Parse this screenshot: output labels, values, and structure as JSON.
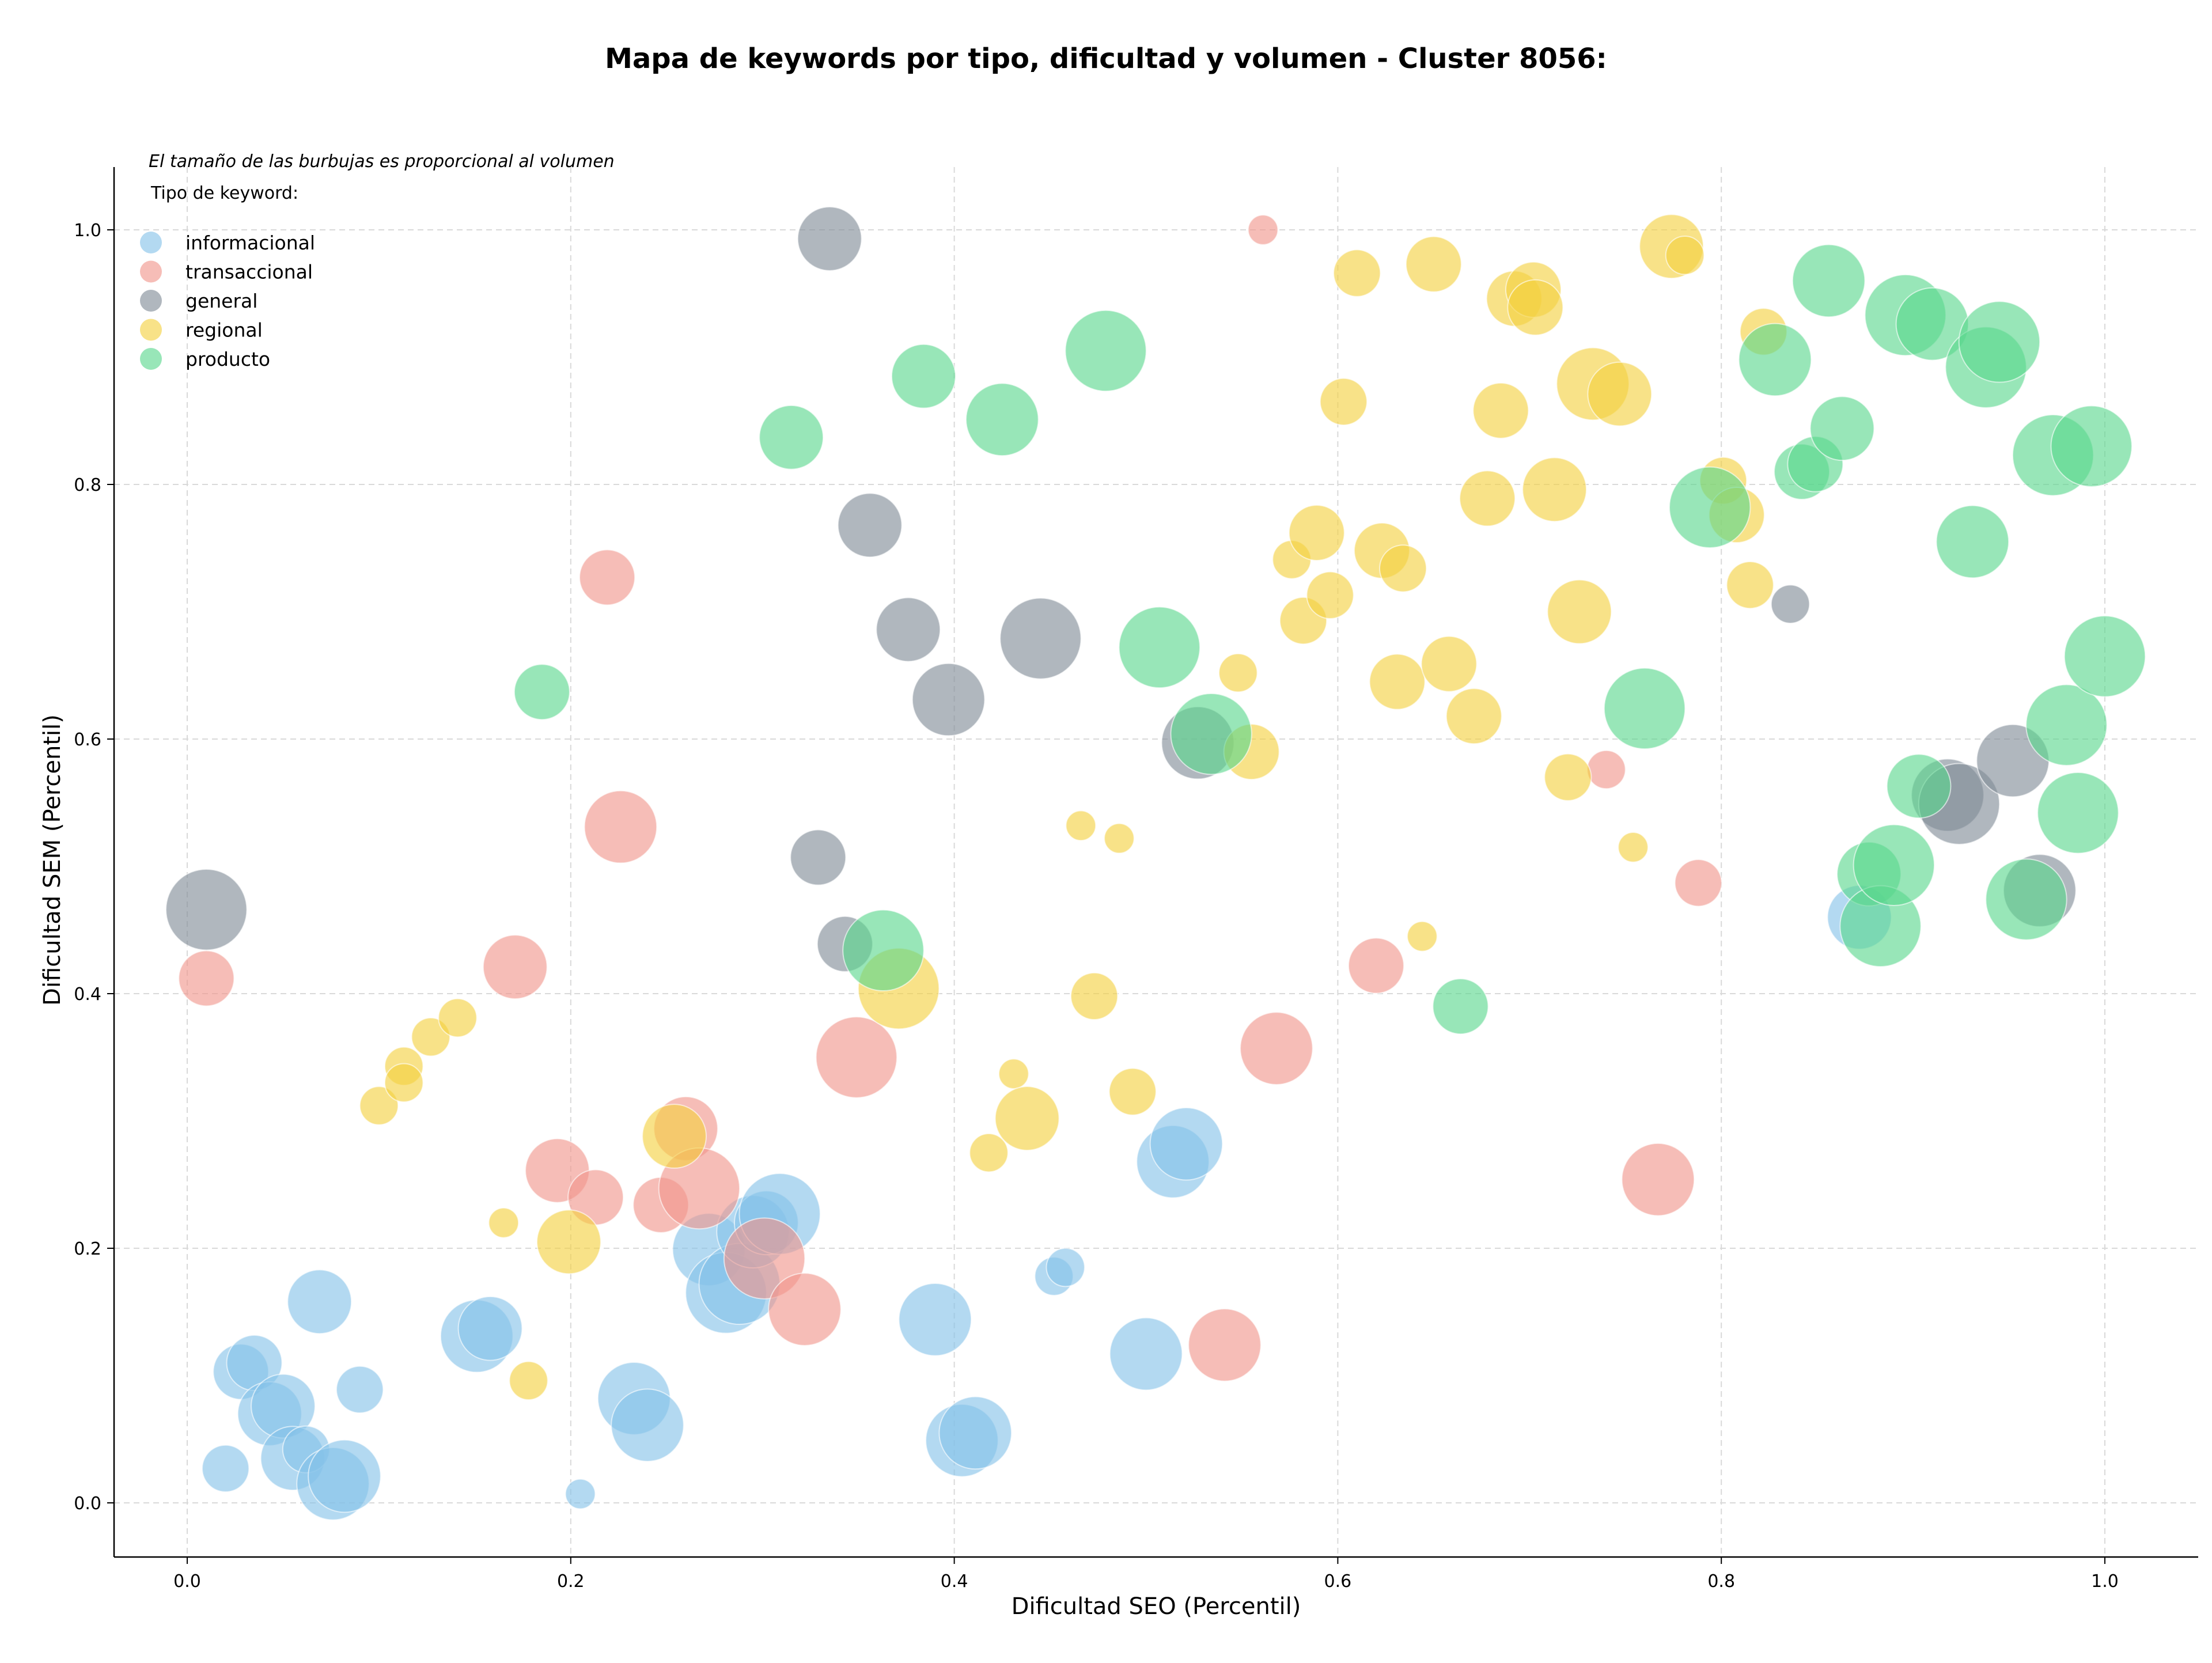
{
  "chart_data": {
    "type": "scatter",
    "title": "Mapa de keywords por tipo, dificultad y volumen - Cluster 8056:",
    "xlabel": "Dificultad SEO (Percentil)",
    "ylabel": "Dificultad SEM (Percentil)",
    "xlim": [
      -0.04,
      1.05
    ],
    "ylim": [
      -0.04,
      1.05
    ],
    "x_ticks": [
      0.0,
      0.2,
      0.4,
      0.6,
      0.8,
      1.0
    ],
    "x_tick_labels": [
      "0.0",
      "0.2",
      "0.4",
      "0.6",
      "0.8",
      "1.0"
    ],
    "y_ticks": [
      0.0,
      0.2,
      0.4,
      0.6,
      0.8,
      1.0
    ],
    "y_tick_labels": [
      "0.0",
      "0.2",
      "0.4",
      "0.6",
      "0.8",
      "1.0"
    ],
    "grid": true,
    "legend_position": "top-left",
    "annotation": "El tamaño de las burbujas es proporcional al volumen",
    "legend_title": "Tipo de keyword:",
    "size_range_note": "bubble size is relative volume on a 1-10 scale",
    "series": [
      {
        "name": "informacional",
        "color": "#85C1E9",
        "points": [
          [
            0.02,
            0.027,
            4
          ],
          [
            0.028,
            0.103,
            5
          ],
          [
            0.035,
            0.11,
            5
          ],
          [
            0.043,
            0.07,
            6
          ],
          [
            0.05,
            0.076,
            6
          ],
          [
            0.055,
            0.035,
            6
          ],
          [
            0.062,
            0.042,
            4
          ],
          [
            0.069,
            0.158,
            6
          ],
          [
            0.076,
            0.015,
            7
          ],
          [
            0.082,
            0.021,
            7
          ],
          [
            0.09,
            0.089,
            4
          ],
          [
            0.151,
            0.131,
            7
          ],
          [
            0.158,
            0.137,
            6
          ],
          [
            0.205,
            0.007,
            2
          ],
          [
            0.233,
            0.082,
            7
          ],
          [
            0.24,
            0.061,
            7
          ],
          [
            0.272,
            0.199,
            7
          ],
          [
            0.281,
            0.165,
            8
          ],
          [
            0.288,
            0.172,
            8
          ],
          [
            0.295,
            0.213,
            7
          ],
          [
            0.302,
            0.22,
            6
          ],
          [
            0.309,
            0.227,
            8
          ],
          [
            0.39,
            0.144,
            7
          ],
          [
            0.404,
            0.049,
            7
          ],
          [
            0.411,
            0.055,
            7
          ],
          [
            0.452,
            0.178,
            3
          ],
          [
            0.458,
            0.185,
            3
          ],
          [
            0.5,
            0.117,
            7
          ],
          [
            0.514,
            0.268,
            7
          ],
          [
            0.521,
            0.282,
            7
          ],
          [
            0.872,
            0.46,
            6
          ]
        ]
      },
      {
        "name": "transaccional",
        "color": "#F1948A",
        "points": [
          [
            0.01,
            0.412,
            5
          ],
          [
            0.171,
            0.421,
            6
          ],
          [
            0.193,
            0.261,
            6
          ],
          [
            0.213,
            0.24,
            5
          ],
          [
            0.219,
            0.727,
            5
          ],
          [
            0.226,
            0.531,
            7
          ],
          [
            0.247,
            0.234,
            5
          ],
          [
            0.26,
            0.294,
            6
          ],
          [
            0.267,
            0.247,
            8
          ],
          [
            0.301,
            0.192,
            8
          ],
          [
            0.322,
            0.152,
            7
          ],
          [
            0.349,
            0.35,
            8
          ],
          [
            0.541,
            0.124,
            7
          ],
          [
            0.561,
            1.0,
            2
          ],
          [
            0.568,
            0.357,
            7
          ],
          [
            0.62,
            0.422,
            5
          ],
          [
            0.74,
            0.576,
            3
          ],
          [
            0.767,
            0.254,
            7
          ],
          [
            0.788,
            0.487,
            4
          ]
        ]
      },
      {
        "name": "general",
        "color": "#808B96",
        "points": [
          [
            0.01,
            0.466,
            8
          ],
          [
            0.329,
            0.507,
            5
          ],
          [
            0.335,
            0.993,
            6
          ],
          [
            0.343,
            0.439,
            5
          ],
          [
            0.356,
            0.768,
            6
          ],
          [
            0.376,
            0.686,
            6
          ],
          [
            0.397,
            0.631,
            7
          ],
          [
            0.445,
            0.679,
            8
          ],
          [
            0.527,
            0.597,
            7
          ],
          [
            0.836,
            0.706,
            3
          ],
          [
            0.918,
            0.556,
            7
          ],
          [
            0.924,
            0.549,
            8
          ],
          [
            0.952,
            0.583,
            7
          ],
          [
            0.966,
            0.481,
            7
          ]
        ]
      },
      {
        "name": "regional",
        "color": "#F4D03F",
        "points": [
          [
            0.1,
            0.312,
            3
          ],
          [
            0.113,
            0.343,
            3
          ],
          [
            0.113,
            0.33,
            3
          ],
          [
            0.127,
            0.366,
            3
          ],
          [
            0.141,
            0.381,
            3
          ],
          [
            0.165,
            0.22,
            2
          ],
          [
            0.178,
            0.096,
            3
          ],
          [
            0.199,
            0.205,
            6
          ],
          [
            0.254,
            0.288,
            6
          ],
          [
            0.371,
            0.404,
            8
          ],
          [
            0.418,
            0.275,
            3
          ],
          [
            0.431,
            0.337,
            2
          ],
          [
            0.438,
            0.302,
            6
          ],
          [
            0.466,
            0.532,
            2
          ],
          [
            0.473,
            0.398,
            4
          ],
          [
            0.486,
            0.522,
            2
          ],
          [
            0.493,
            0.323,
            4
          ],
          [
            0.548,
            0.652,
            3
          ],
          [
            0.555,
            0.59,
            5
          ],
          [
            0.576,
            0.741,
            3
          ],
          [
            0.582,
            0.693,
            4
          ],
          [
            0.589,
            0.762,
            5
          ],
          [
            0.596,
            0.713,
            4
          ],
          [
            0.603,
            0.865,
            4
          ],
          [
            0.61,
            0.966,
            4
          ],
          [
            0.623,
            0.748,
            5
          ],
          [
            0.631,
            0.645,
            5
          ],
          [
            0.634,
            0.734,
            4
          ],
          [
            0.644,
            0.445,
            2
          ],
          [
            0.65,
            0.973,
            5
          ],
          [
            0.658,
            0.659,
            5
          ],
          [
            0.671,
            0.618,
            5
          ],
          [
            0.678,
            0.789,
            5
          ],
          [
            0.685,
            0.858,
            5
          ],
          [
            0.692,
            0.946,
            5
          ],
          [
            0.702,
            0.953,
            5
          ],
          [
            0.703,
            0.939,
            5
          ],
          [
            0.713,
            0.796,
            6
          ],
          [
            0.72,
            0.57,
            4
          ],
          [
            0.726,
            0.7,
            6
          ],
          [
            0.733,
            0.879,
            7
          ],
          [
            0.747,
            0.871,
            6
          ],
          [
            0.754,
            0.515,
            2
          ],
          [
            0.774,
            0.987,
            6
          ],
          [
            0.781,
            0.98,
            3
          ],
          [
            0.801,
            0.803,
            4
          ],
          [
            0.808,
            0.776,
            5
          ],
          [
            0.815,
            0.721,
            4
          ],
          [
            0.822,
            0.92,
            4
          ]
        ]
      },
      {
        "name": "producto",
        "color": "#58D68D",
        "points": [
          [
            0.185,
            0.637,
            5
          ],
          [
            0.315,
            0.837,
            6
          ],
          [
            0.363,
            0.434,
            8
          ],
          [
            0.384,
            0.885,
            6
          ],
          [
            0.425,
            0.851,
            7
          ],
          [
            0.479,
            0.905,
            8
          ],
          [
            0.507,
            0.672,
            8
          ],
          [
            0.534,
            0.604,
            8
          ],
          [
            0.664,
            0.39,
            5
          ],
          [
            0.76,
            0.624,
            8
          ],
          [
            0.794,
            0.782,
            8
          ],
          [
            0.828,
            0.898,
            7
          ],
          [
            0.842,
            0.81,
            5
          ],
          [
            0.849,
            0.816,
            5
          ],
          [
            0.856,
            0.96,
            7
          ],
          [
            0.863,
            0.844,
            6
          ],
          [
            0.877,
            0.494,
            6
          ],
          [
            0.883,
            0.453,
            8
          ],
          [
            0.89,
            0.501,
            8
          ],
          [
            0.896,
            0.933,
            8
          ],
          [
            0.903,
            0.563,
            6
          ],
          [
            0.91,
            0.926,
            7
          ],
          [
            0.931,
            0.755,
            7
          ],
          [
            0.938,
            0.892,
            8
          ],
          [
            0.945,
            0.912,
            8
          ],
          [
            0.959,
            0.474,
            8
          ],
          [
            0.973,
            0.823,
            8
          ],
          [
            0.98,
            0.611,
            8
          ],
          [
            0.986,
            0.542,
            8
          ],
          [
            0.993,
            0.83,
            8
          ],
          [
            1.0,
            0.665,
            8
          ]
        ]
      }
    ]
  }
}
